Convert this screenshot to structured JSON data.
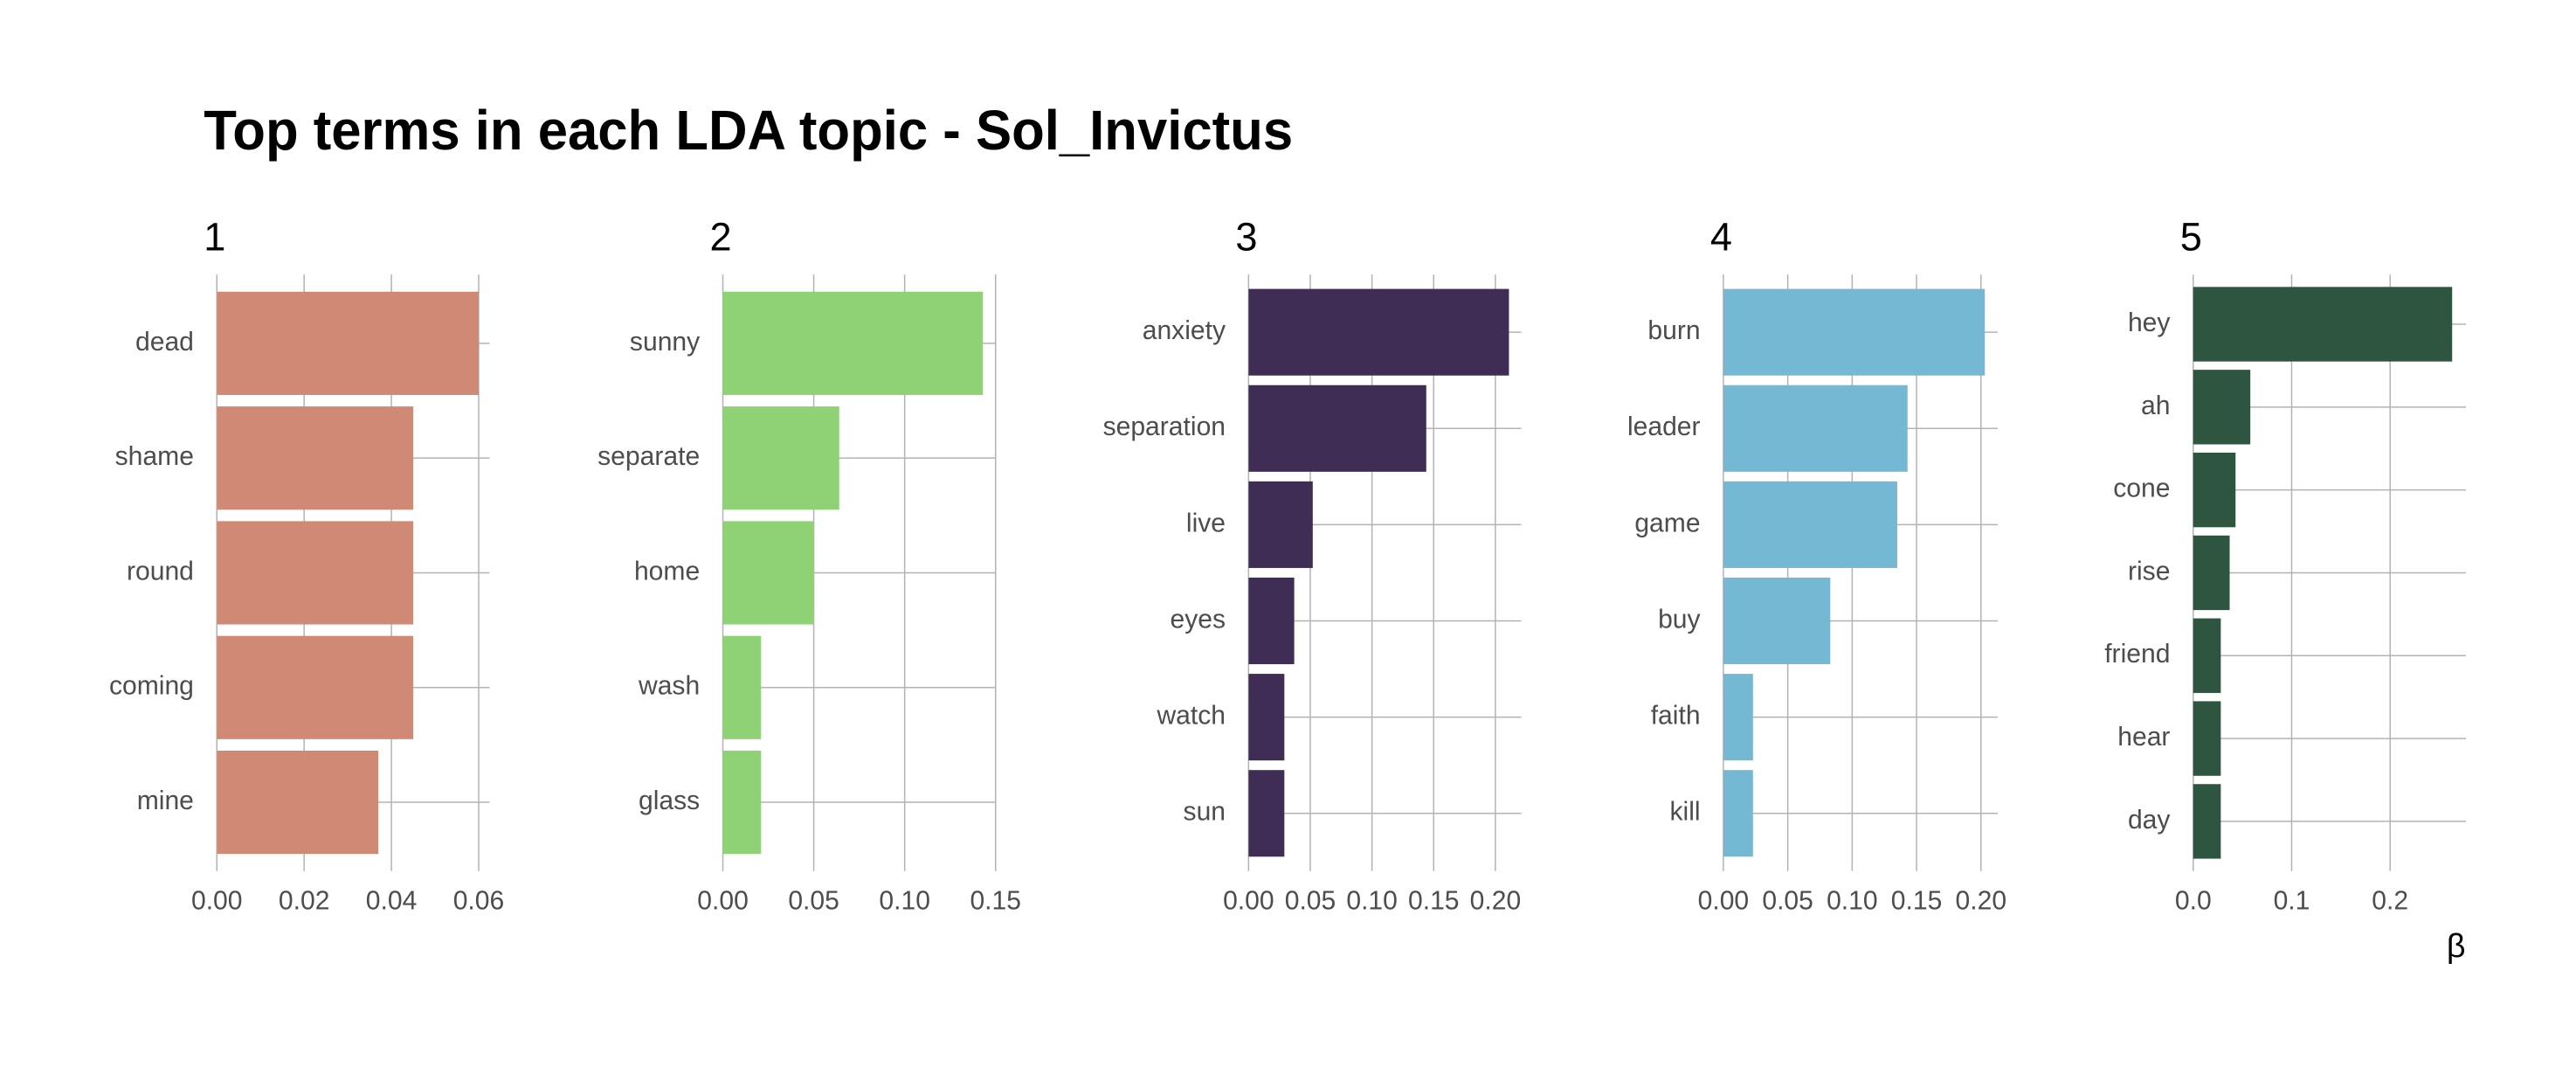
{
  "title": "Top terms in each LDA topic - Sol_Invictus",
  "chart_data": [
    {
      "type": "bar",
      "orientation": "horizontal",
      "title": "1",
      "categories": [
        "dead",
        "shame",
        "round",
        "coming",
        "mine"
      ],
      "values": [
        0.06,
        0.045,
        0.045,
        0.045,
        0.037
      ],
      "color": "#d08975",
      "xlim": [
        0,
        0.0625
      ],
      "xticks": [
        {
          "value": 0,
          "label": "0.00"
        },
        0.02,
        0.04,
        0.06
      ],
      "grid": true
    },
    {
      "type": "bar",
      "orientation": "horizontal",
      "title": "2",
      "categories": [
        "sunny",
        "separate",
        "home",
        "wash",
        "glass"
      ],
      "values": [
        0.143,
        0.064,
        0.05,
        0.021,
        0.021
      ],
      "color": "#8fd275",
      "xlim": [
        0,
        0.15
      ],
      "xticks": [
        {
          "value": 0,
          "label": "0.00"
        },
        0.05,
        {
          "value": 0.1,
          "label": "0.10"
        },
        0.15
      ],
      "grid": true
    },
    {
      "type": "bar",
      "orientation": "horizontal",
      "title": "3",
      "categories": [
        "anxiety",
        "separation",
        "live",
        "eyes",
        "watch",
        "sun"
      ],
      "values": [
        0.211,
        0.144,
        0.052,
        0.037,
        0.029,
        0.029
      ],
      "color": "#3f2d55",
      "xlim": [
        0,
        0.221
      ],
      "xticks": [
        {
          "value": 0,
          "label": "0.00"
        },
        0.05,
        {
          "value": 0.1,
          "label": "0.10"
        },
        0.15,
        {
          "value": 0.2,
          "label": "0.20"
        }
      ],
      "grid": true
    },
    {
      "type": "bar",
      "orientation": "horizontal",
      "title": "4",
      "categories": [
        "burn",
        "leader",
        "game",
        "buy",
        "faith",
        "kill"
      ],
      "values": [
        0.203,
        0.143,
        0.135,
        0.083,
        0.023,
        0.023
      ],
      "color": "#75b8d3",
      "xlim": [
        0,
        0.213
      ],
      "xticks": [
        {
          "value": 0,
          "label": "0.00"
        },
        0.05,
        {
          "value": 0.1,
          "label": "0.10"
        },
        0.15,
        {
          "value": 0.2,
          "label": "0.20"
        }
      ],
      "grid": true
    },
    {
      "type": "bar",
      "orientation": "horizontal",
      "title": "5",
      "xlabel": "β",
      "categories": [
        "hey",
        "ah",
        "cone",
        "rise",
        "friend",
        "hear",
        "day"
      ],
      "values": [
        0.263,
        0.058,
        0.043,
        0.037,
        0.028,
        0.028,
        0.028
      ],
      "color": "#2d553f",
      "xlim": [
        0,
        0.277
      ],
      "xticks": [
        {
          "value": 0,
          "label": "0.0"
        },
        0.1,
        0.2
      ],
      "grid": true
    }
  ]
}
